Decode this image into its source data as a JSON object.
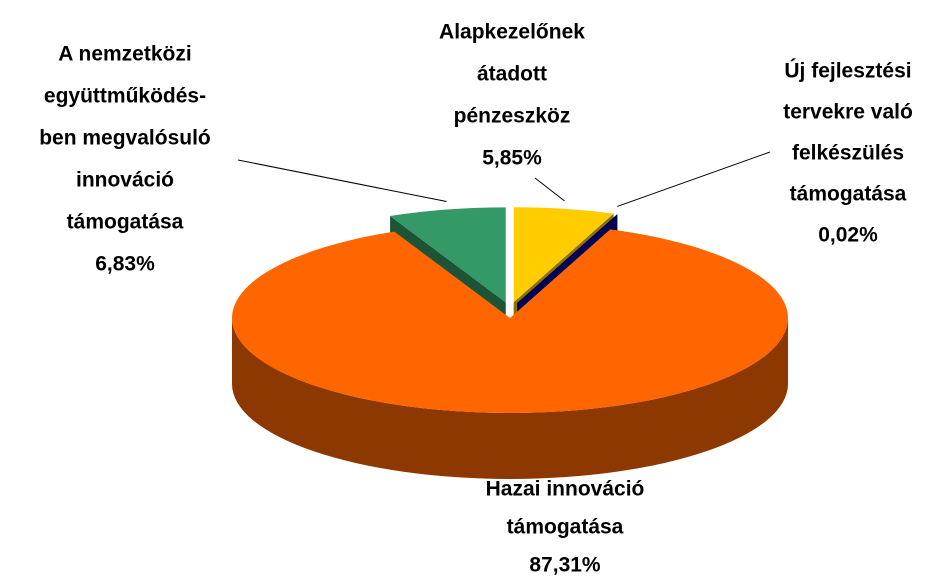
{
  "chart_data": {
    "type": "pie3d",
    "categories": [
      [
        "Alapkezelőnek",
        "átadott",
        "pénzeszköz"
      ],
      [
        "Új fejlesztési",
        "tervekre való",
        "felkészülés",
        "támogatása"
      ],
      [
        "Hazai innováció",
        "támogatása"
      ],
      [
        "A nemzetközi",
        "együttműködés-",
        "ben megvalósuló",
        "innováció",
        "támogatása"
      ]
    ],
    "values": [
      5.85,
      0.02,
      87.31,
      6.83
    ],
    "value_labels": [
      "5,85%",
      "0,02%",
      "87,31%",
      "6,83%"
    ],
    "colors": [
      "#FFCC00",
      "#000099",
      "#FF6600",
      "#339966"
    ]
  }
}
